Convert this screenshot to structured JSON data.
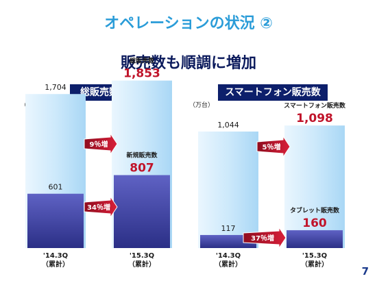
{
  "title": "オペレーションの状況 ②",
  "subtitle": "販売数も順調に増加",
  "page_number": "7",
  "colors": {
    "title": "#2a9cd8",
    "subtitle": "#0b1a5c",
    "panel_header": "#0d1f6b",
    "value_highlight": "#c0142a",
    "growth_arrow": "#c0142a"
  },
  "chart_data": [
    {
      "type": "bar",
      "title": "総販売数",
      "unit": "（万台）",
      "categories": [
        "'14.3Q\n（累計）",
        "'15.3Q\n（累計）"
      ],
      "series": [
        {
          "name": "総販売数",
          "values": [
            1704,
            1853
          ],
          "labels": [
            "1,704",
            "1,853"
          ]
        },
        {
          "name": "新規販売数",
          "values": [
            601,
            807
          ],
          "labels": [
            "601",
            "807"
          ]
        }
      ],
      "growth": [
        "9％増",
        "34％増"
      ],
      "scale_max": 2100
    },
    {
      "type": "bar",
      "title": "スマートフォン販売数",
      "unit": "（万台）",
      "categories": [
        "'14.3Q\n（累計）",
        "'15.3Q\n（累計）"
      ],
      "series": [
        {
          "name": "スマートフォン販売数",
          "values": [
            1044,
            1098
          ],
          "labels": [
            "1,044",
            "1,098"
          ]
        },
        {
          "name": "タブレット販売数",
          "values": [
            117,
            160
          ],
          "labels": [
            "117",
            "160"
          ]
        }
      ],
      "growth": [
        "5％増",
        "37％増"
      ],
      "scale_max": 1320
    }
  ]
}
